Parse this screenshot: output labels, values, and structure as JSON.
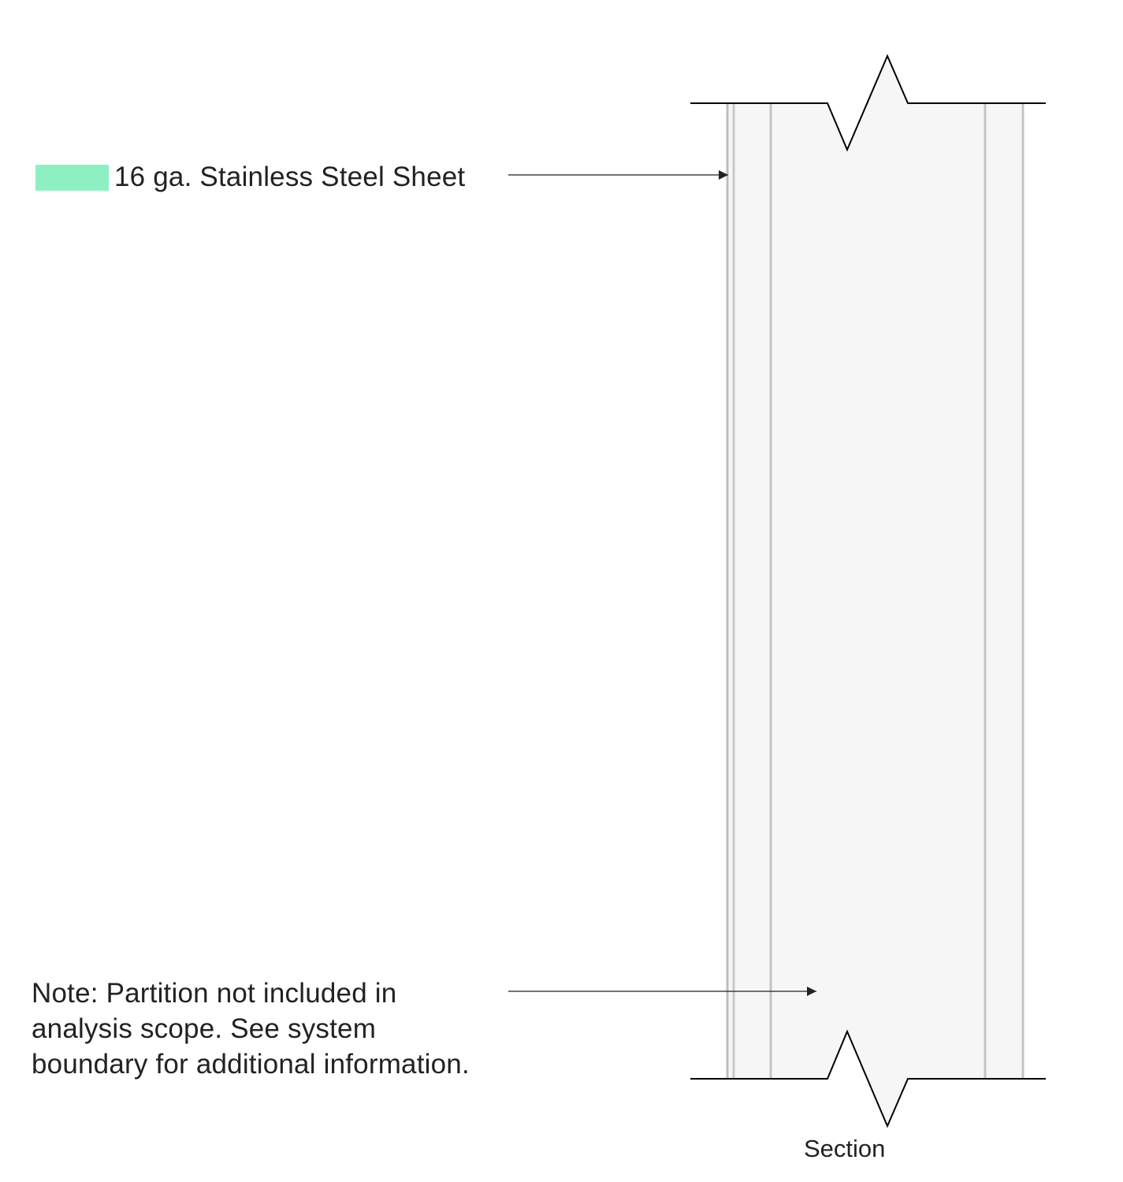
{
  "callouts": {
    "steel_label": "16 ga. Stainless Steel Sheet",
    "note_lines": [
      "Note: Partition not included in",
      "analysis scope. See system",
      "boundary for additional information."
    ]
  },
  "section_label": "Section",
  "legend": {
    "steel_swatch_color": "#8df0c3"
  },
  "colors": {
    "wall_fill": "#f6f6f6",
    "layer_line": "#c4c4c4",
    "outline": "#000000",
    "leader": "#222222"
  }
}
